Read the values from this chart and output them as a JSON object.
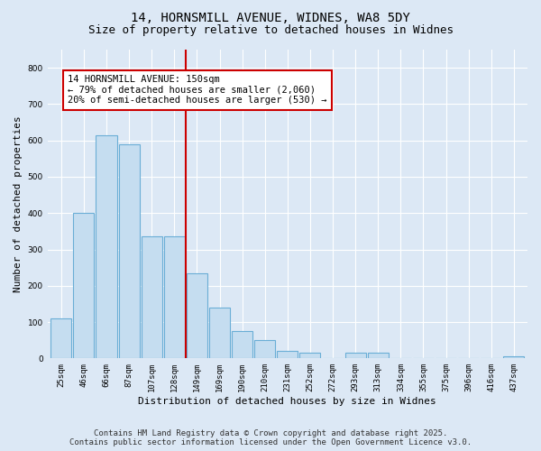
{
  "title_line1": "14, HORNSMILL AVENUE, WIDNES, WA8 5DY",
  "title_line2": "Size of property relative to detached houses in Widnes",
  "xlabel": "Distribution of detached houses by size in Widnes",
  "ylabel": "Number of detached properties",
  "categories": [
    "25sqm",
    "46sqm",
    "66sqm",
    "87sqm",
    "107sqm",
    "128sqm",
    "149sqm",
    "169sqm",
    "190sqm",
    "210sqm",
    "231sqm",
    "252sqm",
    "272sqm",
    "293sqm",
    "313sqm",
    "334sqm",
    "355sqm",
    "375sqm",
    "396sqm",
    "416sqm",
    "437sqm"
  ],
  "values": [
    110,
    400,
    615,
    590,
    335,
    335,
    235,
    140,
    75,
    50,
    20,
    15,
    0,
    15,
    15,
    0,
    0,
    0,
    0,
    0,
    5
  ],
  "bar_color": "#c5ddf0",
  "bar_edgecolor": "#6aaed6",
  "vline_x": 6,
  "vline_color": "#cc0000",
  "annotation_text": "14 HORNSMILL AVENUE: 150sqm\n← 79% of detached houses are smaller (2,060)\n20% of semi-detached houses are larger (530) →",
  "annotation_box_facecolor": "#ffffff",
  "annotation_box_edgecolor": "#cc0000",
  "ylim": [
    0,
    850
  ],
  "yticks": [
    0,
    100,
    200,
    300,
    400,
    500,
    600,
    700,
    800
  ],
  "footer_line1": "Contains HM Land Registry data © Crown copyright and database right 2025.",
  "footer_line2": "Contains public sector information licensed under the Open Government Licence v3.0.",
  "bg_color": "#dce8f5",
  "plot_bg_color": "#dce8f5",
  "grid_color": "#ffffff",
  "title_fontsize": 10,
  "subtitle_fontsize": 9,
  "tick_fontsize": 6.5,
  "xlabel_fontsize": 8,
  "ylabel_fontsize": 8,
  "footer_fontsize": 6.5,
  "annot_fontsize": 7.5
}
